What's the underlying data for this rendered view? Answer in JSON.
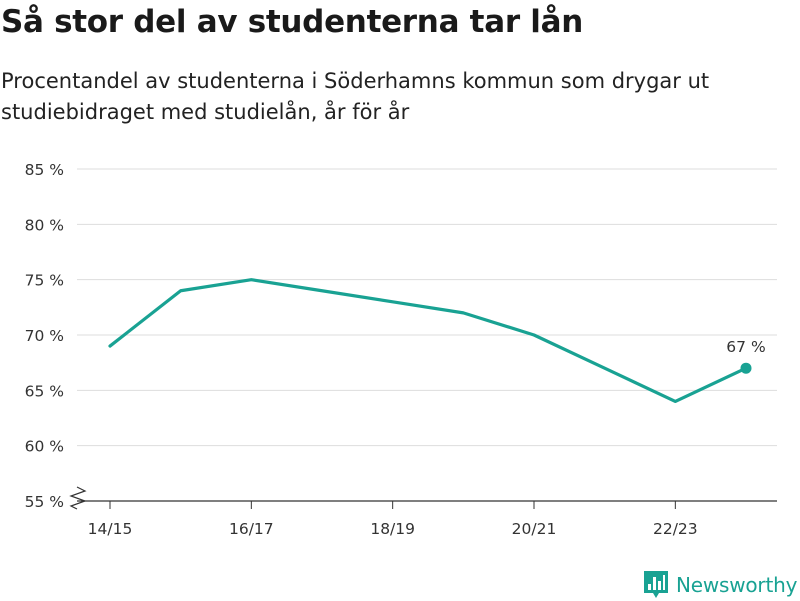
{
  "header": {
    "title": "Så stor del av studenterna tar lån",
    "subtitle": "Procentandel av studenterna i Söderhamns kommun som drygar ut studiebidraget med studielån, år för år"
  },
  "chart_data": {
    "type": "line",
    "x": [
      "14/15",
      "15/16",
      "16/17",
      "17/18",
      "18/19",
      "19/20",
      "20/21",
      "21/22",
      "22/23",
      "23/24"
    ],
    "x_tick_labels": [
      "14/15",
      "16/17",
      "18/19",
      "20/21",
      "22/23"
    ],
    "series": [
      {
        "values": [
          69,
          74,
          75,
          74,
          73,
          72,
          70,
          67,
          64,
          67
        ]
      }
    ],
    "y_ticks": [
      55,
      60,
      65,
      70,
      75,
      80,
      85
    ],
    "y_tick_labels": [
      "55 %",
      "60 %",
      "65 %",
      "70 %",
      "75 %",
      "80 %",
      "85 %"
    ],
    "ylim": [
      55,
      85
    ],
    "y_axis_break": true,
    "grid": true,
    "end_label": "67 %",
    "line_color": "#19A293",
    "grid_color": "#dddddd"
  },
  "branding": {
    "name": "Newsworthy",
    "icon": "newsworthy-logo-icon",
    "color": "#19A293"
  }
}
